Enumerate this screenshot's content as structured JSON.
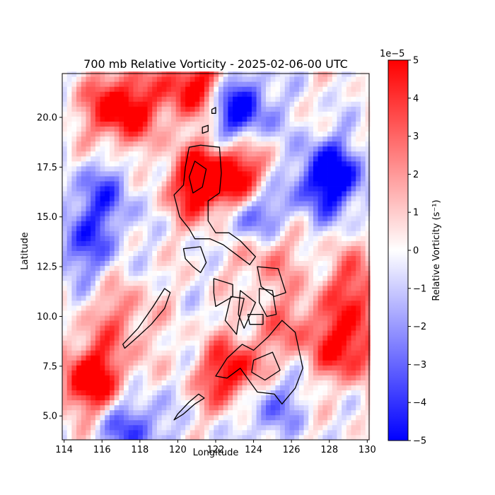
{
  "chart_data": {
    "type": "heatmap",
    "title": "700 mb Relative Vorticity - 2025-02-06-00 UTC",
    "xlabel": "Longitude",
    "ylabel": "Latitude",
    "xlim": [
      113.9,
      130.1
    ],
    "ylim": [
      3.8,
      22.2
    ],
    "xticks": [
      114,
      116,
      118,
      120,
      122,
      124,
      126,
      128,
      130
    ],
    "xtick_labels": [
      "114",
      "116",
      "118",
      "120",
      "122",
      "124",
      "126",
      "128",
      "130"
    ],
    "yticks": [
      5.0,
      7.5,
      10.0,
      12.5,
      15.0,
      17.5,
      20.0
    ],
    "ytick_labels": [
      "5.0",
      "7.5",
      "10.0",
      "12.5",
      "15.0",
      "17.5",
      "20.0"
    ],
    "colormap": "bwr",
    "colorbar": {
      "label": "Relative Vorticity (s⁻¹)",
      "offset_label": "1e−5",
      "range": [
        -5,
        5
      ],
      "ticks": [
        5,
        4,
        3,
        2,
        1,
        0,
        -1,
        -2,
        -3,
        -4,
        -5
      ],
      "tick_labels": [
        "5",
        "4",
        "3",
        "2",
        "1",
        "0",
        "−1",
        "−2",
        "−3",
        "−4",
        "−5"
      ]
    },
    "grid_resolution_deg": 0.25,
    "features": [
      {
        "lon": 123.0,
        "lat": 20.5,
        "value": -5
      },
      {
        "lon": 128.0,
        "lat": 17.0,
        "value": -5
      },
      {
        "lon": 124.0,
        "lat": 15.0,
        "value": -4.5
      },
      {
        "lon": 116.0,
        "lat": 16.0,
        "value": -2.5
      },
      {
        "lon": 115.0,
        "lat": 13.5,
        "value": -2.5
      },
      {
        "lon": 117.0,
        "lat": 20.5,
        "value": 5
      },
      {
        "lon": 121.0,
        "lat": 21.5,
        "value": 5
      },
      {
        "lon": 115.5,
        "lat": 6.8,
        "value": 5
      },
      {
        "lon": 123.0,
        "lat": 7.0,
        "value": 5
      },
      {
        "lon": 129.0,
        "lat": 8.5,
        "value": 4
      },
      {
        "lon": 121.3,
        "lat": 16.7,
        "value": 5
      },
      {
        "lon": 123.3,
        "lat": 17.0,
        "value": 4
      },
      {
        "lon": 124.5,
        "lat": 13.5,
        "value": 3
      },
      {
        "lon": 117.0,
        "lat": 10.0,
        "value": 2
      },
      {
        "lon": 117.5,
        "lat": 4.5,
        "value": -3
      },
      {
        "lon": 124.5,
        "lat": 5.8,
        "value": -3
      },
      {
        "lon": 126.0,
        "lat": 9.5,
        "value": 2
      },
      {
        "lon": 129.5,
        "lat": 11.5,
        "value": 3
      }
    ]
  }
}
